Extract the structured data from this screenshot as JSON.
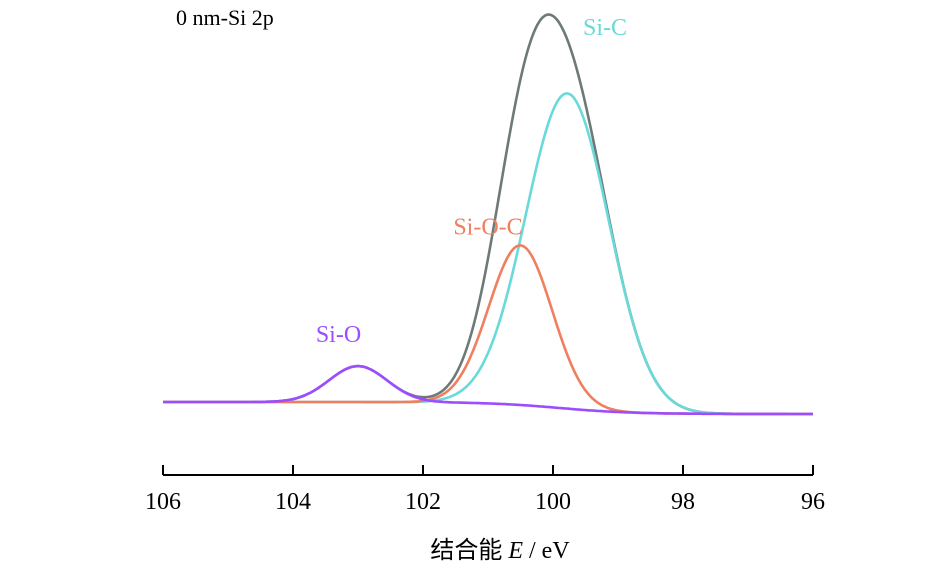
{
  "chart_data": {
    "type": "line",
    "panel_label": "0 nm-Si 2p",
    "xlabel": {
      "prefix": "结合能 ",
      "italic": "E",
      "suffix": " / eV"
    },
    "ylabel": "",
    "xlim": [
      106,
      96
    ],
    "x_reversed": true,
    "ylim": [
      -0.05,
      1.0
    ],
    "yaxis_visible": false,
    "grid": false,
    "x_ticks": [
      106,
      104,
      102,
      100,
      98,
      96
    ],
    "x_tick_labels": [
      "106",
      "104",
      "102",
      "100",
      "98",
      "96"
    ],
    "baseline": {
      "x": [
        106,
        100,
        96
      ],
      "y": [
        0.0,
        0.0,
        -0.03
      ]
    },
    "series": [
      {
        "name": "Si-O",
        "color": "#9b4dff",
        "center": 103.0,
        "height": 0.09,
        "fwhm": 1.05,
        "label_x": 103.3,
        "label_y": 0.15
      },
      {
        "name": "Si-O-C",
        "color": "#f07f5f",
        "center": 100.5,
        "height": 0.4,
        "fwhm": 1.15,
        "label_x": 101.0,
        "label_y": 0.42
      },
      {
        "name": "Si-C",
        "color": "#6ad9d9",
        "center": 99.78,
        "height": 0.79,
        "fwhm": 1.5,
        "label_x": 99.2,
        "label_y": 0.92
      },
      {
        "name": "",
        "color": "#6e7a77",
        "role": "envelope",
        "center": null,
        "height": 0.99,
        "fwhm": null
      }
    ]
  }
}
